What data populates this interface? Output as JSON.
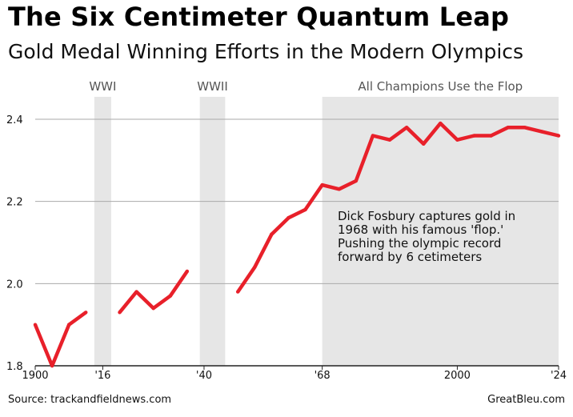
{
  "chart_data": {
    "type": "line",
    "title": "The Six Centimeter Quantum Leap",
    "subtitle": "Gold Medal Winning Efforts in the Modern Olympics",
    "xlabel": "",
    "ylabel": "",
    "xlim": [
      1900,
      2024
    ],
    "ylim": [
      1.8,
      2.4
    ],
    "yticks": [
      {
        "value": 1.8,
        "label": "1.8"
      },
      {
        "value": 2.0,
        "label": "2.0"
      },
      {
        "value": 2.2,
        "label": "2.2"
      },
      {
        "value": 2.4,
        "label": "2.4"
      }
    ],
    "xticks": [
      {
        "value": 1900,
        "label": "1900"
      },
      {
        "value": 1916,
        "label": "'16"
      },
      {
        "value": 1940,
        "label": "'40"
      },
      {
        "value": 1968,
        "label": "'68"
      },
      {
        "value": 2000,
        "label": "2000"
      },
      {
        "value": 2024,
        "label": "'24"
      }
    ],
    "grid": true,
    "line_color": "#e8202a",
    "band_color": "#e6e6e6",
    "segments": [
      {
        "x": [
          1900,
          1904,
          1908,
          1912
        ],
        "y": [
          1.9,
          1.8,
          1.9,
          1.93
        ]
      },
      {
        "x": [
          1920,
          1924,
          1928,
          1932,
          1936
        ],
        "y": [
          1.93,
          1.98,
          1.94,
          1.97,
          2.03
        ]
      },
      {
        "x": [
          1948,
          1952,
          1956,
          1960,
          1964,
          1968,
          1972,
          1976,
          1980,
          1984,
          1988,
          1992,
          1996,
          2000,
          2004,
          2008,
          2012,
          2016,
          2020,
          2024
        ],
        "y": [
          1.98,
          2.04,
          2.12,
          2.16,
          2.18,
          2.24,
          2.23,
          2.25,
          2.36,
          2.35,
          2.38,
          2.34,
          2.39,
          2.35,
          2.36,
          2.36,
          2.38,
          2.38,
          2.37,
          2.36
        ]
      }
    ],
    "bands": [
      {
        "start": 1914,
        "end": 1918,
        "label": "WWI"
      },
      {
        "start": 1939,
        "end": 1945,
        "label": "WWII"
      },
      {
        "start": 1968,
        "end": 2024,
        "label": "All Champions Use the Flop"
      }
    ],
    "annotation": [
      "Dick Fosbury captures gold in",
      "1968 with his famous 'flop.'",
      "Pushing the olympic record",
      "forward by 6 cetimeters"
    ]
  },
  "footer": {
    "source": "Source: trackandfieldnews.com",
    "credit": "GreatBleu.com"
  }
}
